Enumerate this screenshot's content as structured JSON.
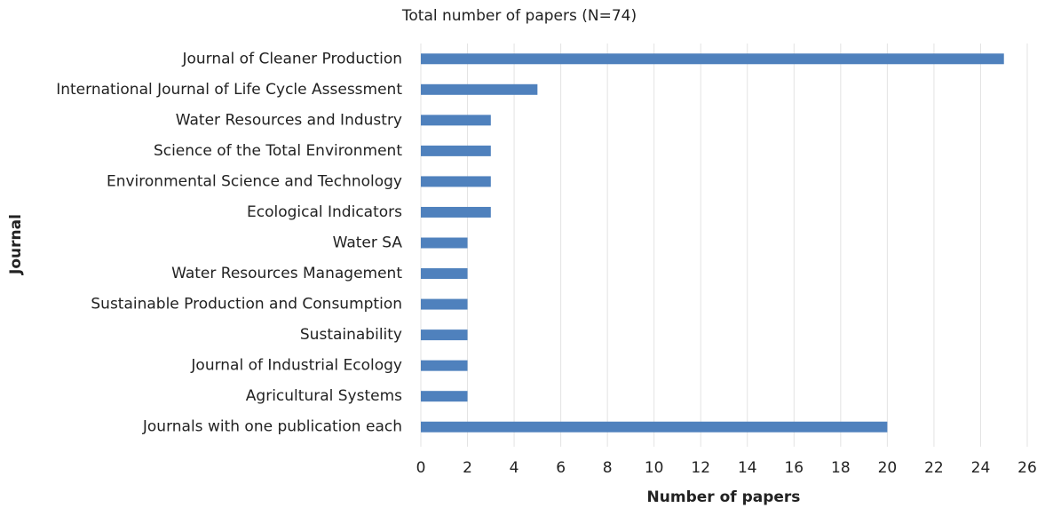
{
  "chart_data": {
    "type": "bar",
    "orientation": "horizontal",
    "title": "Total number of papers (N=74)",
    "x_label": "Number of papers",
    "y_label": "Journal",
    "categories": [
      "Journal of Cleaner Production",
      "International Journal of Life Cycle Assessment",
      "Water Resources and Industry",
      "Science of the Total Environment",
      "Environmental Science and Technology",
      "Ecological Indicators",
      "Water SA",
      "Water Resources Management",
      "Sustainable Production and Consumption",
      "Sustainability",
      "Journal of Industrial Ecology",
      "Agricultural Systems",
      "Journals with one publication each"
    ],
    "values": [
      25,
      5,
      3,
      3,
      3,
      3,
      2,
      2,
      2,
      2,
      2,
      2,
      20
    ],
    "color": "#4f81bd",
    "xlim": [
      0,
      26
    ],
    "xticks": [
      0,
      2,
      4,
      6,
      8,
      10,
      12,
      14,
      16,
      18,
      20,
      22,
      24,
      26
    ],
    "grid": true
  }
}
